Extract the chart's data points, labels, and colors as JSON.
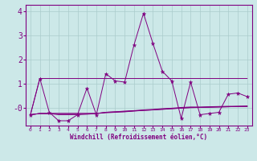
{
  "x": [
    0,
    1,
    2,
    3,
    4,
    5,
    6,
    7,
    8,
    9,
    10,
    11,
    12,
    13,
    14,
    15,
    16,
    17,
    18,
    19,
    20,
    21,
    22,
    23
  ],
  "y_main": [
    -0.3,
    1.2,
    -0.2,
    -0.55,
    -0.55,
    -0.3,
    0.8,
    -0.3,
    1.4,
    1.1,
    1.05,
    2.6,
    3.9,
    2.65,
    1.5,
    1.1,
    -0.45,
    1.05,
    -0.3,
    -0.25,
    -0.2,
    0.55,
    0.6,
    0.45
  ],
  "y_line1": [
    -0.3,
    1.2,
    1.2,
    1.2,
    1.2,
    1.2,
    1.2,
    1.2,
    1.2,
    1.2,
    1.2,
    1.2,
    1.2,
    1.2,
    1.2,
    1.2,
    1.2,
    1.2,
    1.2,
    1.2,
    1.2,
    1.2,
    1.2,
    1.2
  ],
  "y_line2": [
    -0.3,
    -0.25,
    -0.25,
    -0.25,
    -0.25,
    -0.25,
    -0.25,
    -0.25,
    -0.22,
    -0.2,
    -0.18,
    -0.15,
    -0.12,
    -0.1,
    -0.08,
    -0.05,
    -0.03,
    -0.01,
    0.0,
    0.01,
    0.02,
    0.03,
    0.04,
    0.05
  ],
  "y_line3": [
    -0.3,
    -0.25,
    -0.25,
    -0.25,
    -0.25,
    -0.25,
    -0.25,
    -0.25,
    -0.2,
    -0.18,
    -0.15,
    -0.13,
    -0.1,
    -0.08,
    -0.05,
    -0.03,
    0.0,
    0.02,
    0.02,
    0.03,
    0.04,
    0.05,
    0.05,
    0.06
  ],
  "y_line4": [
    -0.3,
    -0.25,
    -0.25,
    -0.3,
    -0.3,
    -0.3,
    -0.28,
    -0.25,
    -0.2,
    -0.18,
    -0.17,
    -0.14,
    -0.12,
    -0.1,
    -0.07,
    -0.05,
    -0.02,
    0.0,
    0.0,
    0.01,
    0.02,
    0.03,
    0.04,
    0.04
  ],
  "color": "#800080",
  "bg_color": "#cce8e8",
  "grid_color": "#aacccc",
  "xlabel": "Windchill (Refroidissement éolien,°C)",
  "ylim": [
    -0.75,
    4.25
  ],
  "xlim": [
    -0.5,
    23.5
  ],
  "yticks": [
    0,
    1,
    2,
    3,
    4
  ],
  "ytick_labels": [
    "-0",
    "1",
    "2",
    "3",
    "4"
  ],
  "xticks": [
    0,
    1,
    2,
    3,
    4,
    5,
    6,
    7,
    8,
    9,
    10,
    11,
    12,
    13,
    14,
    15,
    16,
    17,
    18,
    19,
    20,
    21,
    22,
    23
  ]
}
